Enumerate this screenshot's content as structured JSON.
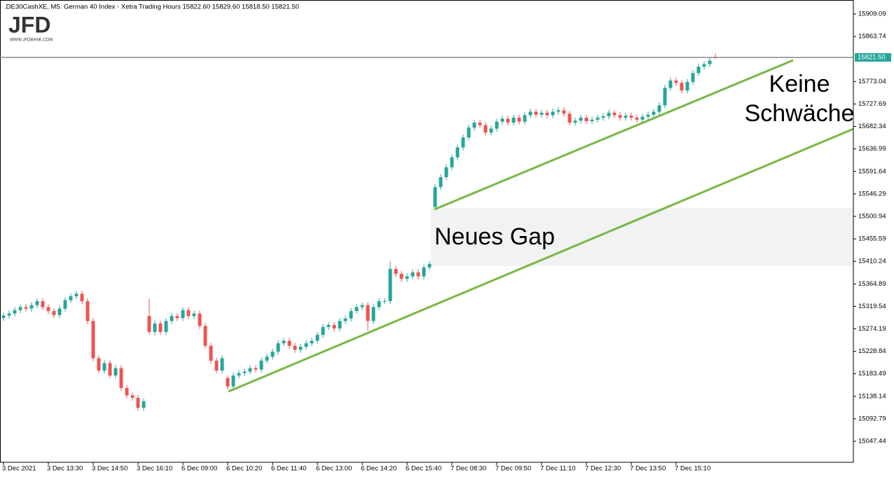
{
  "chart_data": {
    "type": "candlestick",
    "header": ".DE30CashXE, M5:  German 40 Index  - Xetra Trading Hours  15822.60 15829.60 15818.50 15821.50",
    "logo": {
      "text": "JFD",
      "url": "WWW.JFDBANK.COM"
    },
    "annotations": [
      "Keine",
      "Schwäche",
      "Neues Gap"
    ],
    "up_color": "#26a69a",
    "down_color": "#ef5350",
    "current_price": {
      "value": 15821.5,
      "label": "15821.50"
    },
    "current_price_color": "#26a69a",
    "ylim": [
      15005.07,
      15937.34
    ],
    "yticks": [
      15909.09,
      15863.74,
      15773.04,
      15727.69,
      15682.34,
      15636.99,
      15591.64,
      15546.29,
      15500.94,
      15455.59,
      15410.24,
      15364.89,
      15319.54,
      15274.19,
      15228.84,
      15183.49,
      15138.14,
      15092.79,
      15047.44
    ],
    "categories": [
      "3 Dec 2021",
      null,
      null,
      null,
      null,
      null,
      null,
      null,
      "3 Dec 13:30",
      null,
      null,
      null,
      null,
      null,
      null,
      null,
      "3 Dec 14:50",
      null,
      null,
      null,
      null,
      null,
      null,
      null,
      "3 Dec 16:10",
      null,
      null,
      null,
      null,
      null,
      null,
      null,
      "6 Dec 09:00",
      null,
      null,
      null,
      null,
      null,
      null,
      null,
      "6 Dec 10:20",
      null,
      null,
      null,
      null,
      null,
      null,
      null,
      "6 Dec 11:40",
      null,
      null,
      null,
      null,
      null,
      null,
      null,
      "6 Dec 13:00",
      null,
      null,
      null,
      null,
      null,
      null,
      null,
      "6 Dec 14:20",
      null,
      null,
      null,
      null,
      null,
      null,
      null,
      "6 Dec 15:40",
      null,
      null,
      null,
      null,
      null,
      null,
      null,
      "7 Dec 08:30",
      null,
      null,
      null,
      null,
      null,
      null,
      null,
      "7 Dec 09:50",
      null,
      null,
      null,
      null,
      null,
      null,
      null,
      "7 Dec 11:10",
      null,
      null,
      null,
      null,
      null,
      null,
      null,
      "7 Dec 12:30",
      null,
      null,
      null,
      null,
      null,
      null,
      null,
      "7 Dec 13:50",
      null,
      null,
      null,
      null,
      null,
      null,
      null,
      "7 Dec 15:10",
      null,
      null,
      null,
      null,
      null,
      null,
      null
    ],
    "open": [
      15296,
      15301,
      15305,
      15312,
      15318,
      15315,
      15322,
      15330,
      15318,
      15310,
      15302,
      15315,
      15332,
      15340,
      15345,
      15330,
      15290,
      15215,
      15190,
      15205,
      15180,
      15195,
      15155,
      15140,
      15135,
      15115,
      15300,
      15268,
      15285,
      15268,
      15290,
      15300,
      15296,
      15312,
      15300,
      15305,
      15280,
      15240,
      15210,
      15190,
      15175,
      15158,
      15180,
      15185,
      15188,
      15195,
      15192,
      15210,
      15218,
      15228,
      15245,
      15250,
      15240,
      15232,
      15238,
      15245,
      15250,
      15262,
      15278,
      15282,
      15275,
      15290,
      15295,
      15310,
      15318,
      15322,
      15290,
      15318,
      15330,
      15330,
      15395,
      15385,
      15375,
      15380,
      15388,
      15380,
      15398,
      15520,
      15560,
      15580,
      15600,
      15620,
      15640,
      15660,
      15680,
      15690,
      15685,
      15670,
      15678,
      15692,
      15698,
      15690,
      15700,
      15692,
      15705,
      15712,
      15706,
      15710,
      15705,
      15712,
      15715,
      15708,
      15690,
      15694,
      15700,
      15693,
      15696,
      15700,
      15703,
      15710,
      15705,
      15700,
      15704,
      15700,
      15696,
      15702,
      15706,
      15712,
      15725,
      15760,
      15775,
      15770,
      15755,
      15772,
      15790,
      15803,
      15808,
      15822.6
    ],
    "high": [
      15307,
      15311,
      15318,
      15324,
      15324,
      15328,
      15336,
      15336,
      15324,
      15316,
      15321,
      15338,
      15346,
      15351,
      15351,
      15336,
      15296,
      15221,
      15211,
      15211,
      15201,
      15201,
      15161,
      15146,
      15141,
      15134,
      15334,
      15291,
      15291,
      15296,
      15306,
      15306,
      15318,
      15318,
      15311,
      15311,
      15286,
      15246,
      15216,
      15221,
      15181,
      15186,
      15191,
      15194,
      15201,
      15201,
      15216,
      15224,
      15234,
      15251,
      15256,
      15256,
      15246,
      15244,
      15251,
      15256,
      15268,
      15284,
      15288,
      15288,
      15296,
      15301,
      15316,
      15324,
      15328,
      15328,
      15324,
      15336,
      15336,
      15410,
      15401,
      15391,
      15386,
      15394,
      15394,
      15404,
      15411,
      15566,
      15586,
      15606,
      15626,
      15646,
      15666,
      15686,
      15696,
      15696,
      15691,
      15684,
      15698,
      15704,
      15704,
      15706,
      15706,
      15711,
      15718,
      15718,
      15716,
      15716,
      15718,
      15721,
      15721,
      15714,
      15700,
      15706,
      15706,
      15702,
      15706,
      15709,
      15716,
      15716,
      15711,
      15710,
      15710,
      15706,
      15708,
      15712,
      15718,
      15731,
      15766,
      15781,
      15781,
      15776,
      15778,
      15796,
      15809,
      15814,
      15821,
      15829.6
    ],
    "low": [
      15290,
      15295,
      15299,
      15306,
      15309,
      15309,
      15316,
      15312,
      15304,
      15296,
      15296,
      15309,
      15326,
      15334,
      15324,
      15284,
      15209,
      15184,
      15184,
      15174,
      15174,
      15149,
      15134,
      15129,
      15109,
      15109,
      15262,
      15262,
      15262,
      15262,
      15284,
      15290,
      15290,
      15294,
      15294,
      15274,
      15234,
      15204,
      15184,
      15184,
      15152,
      15152,
      15174,
      15179,
      15182,
      15186,
      15186,
      15204,
      15212,
      15222,
      15239,
      15234,
      15226,
      15226,
      15232,
      15239,
      15244,
      15256,
      15272,
      15269,
      15269,
      15284,
      15289,
      15304,
      15312,
      15270,
      15284,
      15312,
      15324,
      15324,
      15379,
      15369,
      15369,
      15374,
      15374,
      15374,
      15392,
      15514,
      15554,
      15574,
      15594,
      15614,
      15634,
      15654,
      15674,
      15679,
      15664,
      15664,
      15672,
      15686,
      15684,
      15684,
      15686,
      15686,
      15699,
      15700,
      15700,
      15699,
      15699,
      15706,
      15702,
      15684,
      15684,
      15688,
      15687,
      15687,
      15690,
      15694,
      15697,
      15699,
      15694,
      15694,
      15694,
      15690,
      15690,
      15696,
      15700,
      15706,
      15719,
      15754,
      15764,
      15749,
      15749,
      15766,
      15784,
      15797,
      15802,
      15818.5
    ],
    "close": [
      15301,
      15305,
      15312,
      15318,
      15315,
      15322,
      15330,
      15318,
      15310,
      15302,
      15315,
      15332,
      15340,
      15345,
      15330,
      15290,
      15215,
      15190,
      15205,
      15180,
      15195,
      15155,
      15140,
      15135,
      15115,
      15128,
      15268,
      15285,
      15268,
      15290,
      15300,
      15296,
      15312,
      15300,
      15305,
      15280,
      15240,
      15210,
      15190,
      15215,
      15158,
      15180,
      15185,
      15188,
      15195,
      15192,
      15210,
      15218,
      15228,
      15245,
      15250,
      15240,
      15232,
      15238,
      15245,
      15250,
      15262,
      15278,
      15282,
      15275,
      15290,
      15295,
      15310,
      15318,
      15322,
      15290,
      15318,
      15330,
      15330,
      15395,
      15385,
      15375,
      15380,
      15388,
      15380,
      15398,
      15405,
      15560,
      15580,
      15600,
      15620,
      15640,
      15660,
      15680,
      15690,
      15685,
      15670,
      15678,
      15692,
      15698,
      15690,
      15700,
      15692,
      15705,
      15712,
      15706,
      15710,
      15705,
      15712,
      15715,
      15708,
      15690,
      15694,
      15700,
      15693,
      15696,
      15700,
      15703,
      15710,
      15705,
      15700,
      15704,
      15700,
      15696,
      15702,
      15706,
      15712,
      15725,
      15760,
      15775,
      15770,
      15755,
      15772,
      15790,
      15803,
      15808,
      15815,
      15821.5
    ]
  }
}
